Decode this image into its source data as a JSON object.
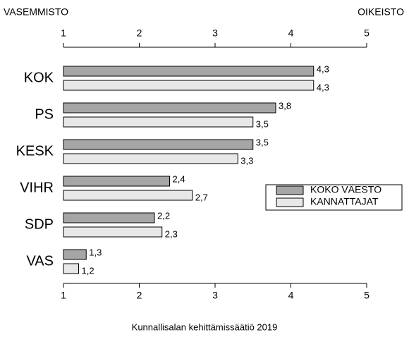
{
  "chart_data": {
    "type": "hbar",
    "x_left_label": "VASEMMISTO",
    "x_right_label": "OIKEISTO",
    "source": "Kunnallisalan kehittämissäätiö 2019",
    "categories": [
      "KOK",
      "PS",
      "KESK",
      "VIHR",
      "SDP",
      "VAS"
    ],
    "series": [
      {
        "name": "KOKO VÄESTÖ",
        "color": "#a6a6a6",
        "values": [
          4.3,
          3.8,
          3.5,
          2.4,
          2.2,
          1.3
        ],
        "value_labels": [
          "4,3",
          "3,8",
          "3,5",
          "2,4",
          "2,2",
          "1,3"
        ]
      },
      {
        "name": "KANNATTAJAT",
        "color": "#e8e8e8",
        "values": [
          4.3,
          3.5,
          3.3,
          2.7,
          2.3,
          1.2
        ],
        "value_labels": [
          "4,3",
          "3,5",
          "3,3",
          "2,7",
          "2,3",
          "1,2"
        ]
      }
    ],
    "xlim": [
      1,
      5
    ],
    "xticks": [
      1,
      2,
      3,
      4,
      5
    ],
    "legend": "right"
  }
}
